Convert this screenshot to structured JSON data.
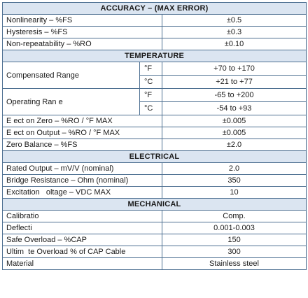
{
  "sections": {
    "accuracy": {
      "title": "ACCURACY – (MAX ERROR)",
      "rows": [
        {
          "label": "Nonlinearity – %FS",
          "value": "±0.5"
        },
        {
          "label": "Hysteresis – %FS",
          "value": "±0.3"
        },
        {
          "label": "Non-repeatability – %RO",
          "value": "±0.10"
        }
      ]
    },
    "temperature": {
      "title": "TEMPERATURE",
      "compensated_range": {
        "label": "Compensated Range",
        "f_unit": "°F",
        "f_value": "+70 to +170",
        "c_unit": "°C",
        "c_value": "+21 to +77"
      },
      "operating_range": {
        "label": "Operating Ran e",
        "f_unit": "°F",
        "f_value": "-65 to +200",
        "c_unit": "°C",
        "c_value": "-54 to +93"
      },
      "rows": [
        {
          "label": "E ect on Zero – %RO / °F MAX",
          "value": "±0.005"
        },
        {
          "label": "E ect on Output – %RO / °F MAX",
          "value": "±0.005"
        },
        {
          "label": "Zero Balance – %FS",
          "value": "±2.0"
        }
      ]
    },
    "electrical": {
      "title": "ELECTRICAL",
      "rows": [
        {
          "label": "Rated Output – mV/V (nominal)",
          "value": "2.0"
        },
        {
          "label": "Bridge Resistance – Ohm (nominal)",
          "value": "350"
        },
        {
          "label": "Excitation   oltage – VDC MAX",
          "value": "10"
        }
      ]
    },
    "mechanical": {
      "title": "MECHANICAL",
      "rows": [
        {
          "label": "Calibratio",
          "value": "Comp."
        },
        {
          "label": "Deflecti",
          "value": "0.001-0.003"
        },
        {
          "label": "Safe Overload – %CAP",
          "value": "150"
        },
        {
          "label": "Ultim  te Overload % of CAP Cable",
          "value": "300"
        },
        {
          "label": "Material",
          "value": "Stainless steel"
        }
      ]
    }
  }
}
